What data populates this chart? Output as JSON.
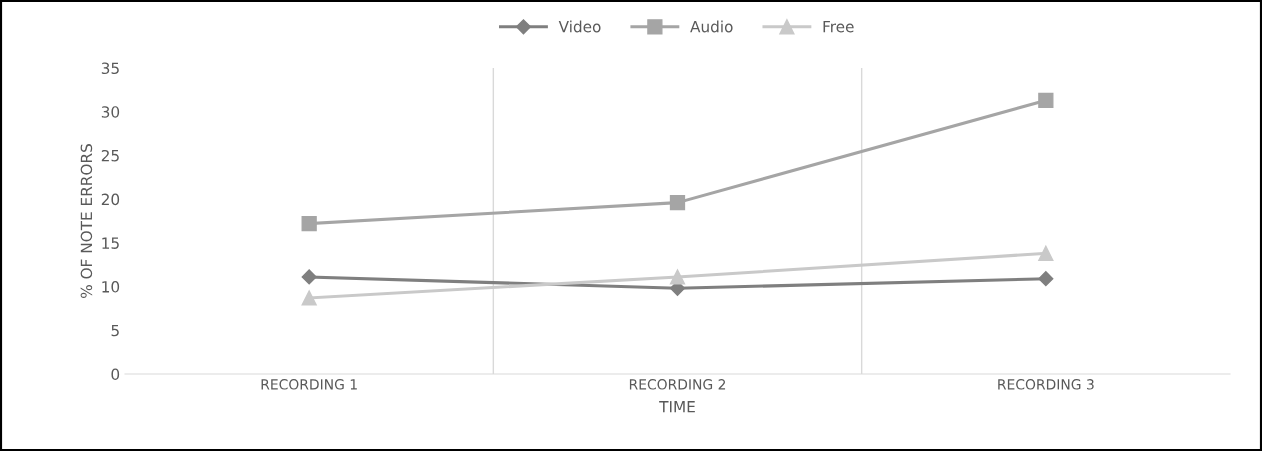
{
  "chart_data": {
    "type": "line",
    "xlabel": "TIME",
    "ylabel": "% OF NOTE ERRORS",
    "categories": [
      "RECORDING 1",
      "RECORDING 2",
      "RECORDING 3"
    ],
    "series": [
      {
        "name": "Video",
        "color": "#7f7f7f",
        "values": [
          11.1,
          9.8,
          10.9
        ],
        "marker": "diamond"
      },
      {
        "name": "Audio",
        "color": "#a5a5a5",
        "values": [
          17.2,
          19.6,
          31.3
        ],
        "marker": "square"
      },
      {
        "name": "Free",
        "color": "#c9c9c9",
        "values": [
          8.7,
          11.1,
          13.8
        ],
        "marker": "triangle"
      }
    ],
    "ylim": [
      0,
      35
    ],
    "yticks": [
      0,
      5,
      10,
      15,
      20,
      25,
      30,
      35
    ],
    "grid": "x",
    "legend": "top",
    "line_style": "solid"
  }
}
